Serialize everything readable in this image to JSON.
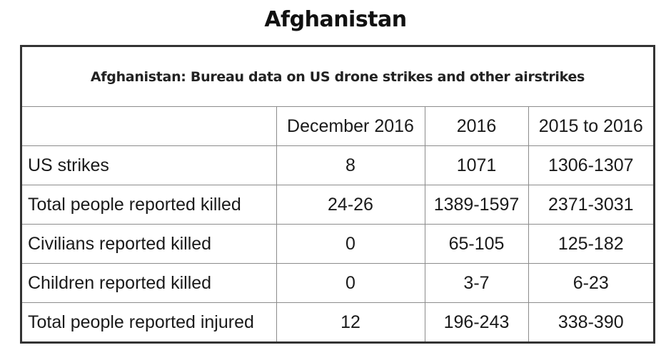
{
  "page": {
    "title": "Afghanistan"
  },
  "table": {
    "caption": "Afghanistan: Bureau data on US drone strikes and other airstrikes",
    "columns": [
      "",
      "December 2016",
      "2016",
      "2015 to 2016"
    ],
    "rows": [
      {
        "label": "US strikes",
        "values": [
          "8",
          "1071",
          "1306-1307"
        ]
      },
      {
        "label": "Total people reported killed",
        "values": [
          "24-26",
          "1389-1597",
          "2371-3031"
        ]
      },
      {
        "label": "Civilians reported killed",
        "values": [
          "0",
          "65-105",
          "125-182"
        ]
      },
      {
        "label": "Children reported killed",
        "values": [
          "0",
          "3-7",
          "6-23"
        ]
      },
      {
        "label": "Total people reported injured",
        "values": [
          "12",
          "196-243",
          "338-390"
        ]
      }
    ]
  }
}
